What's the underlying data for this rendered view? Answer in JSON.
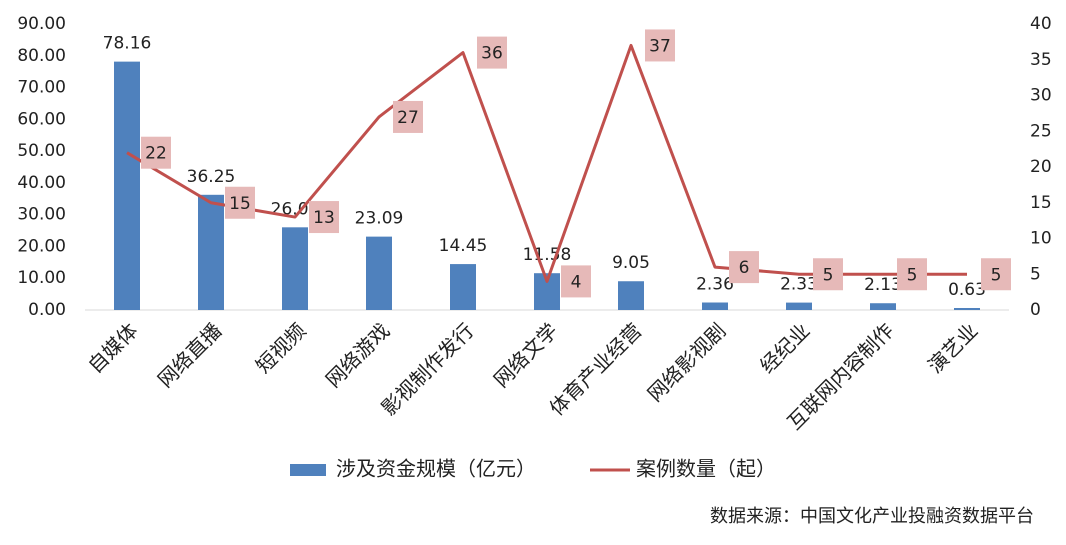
{
  "chart_data": {
    "type": "combo",
    "categories": [
      "自媒体",
      "网络直播",
      "短视频",
      "网络游戏",
      "影视制作发行",
      "网络文学",
      "体育产业经营",
      "网络影视剧",
      "经纪业",
      "互联网内容制作",
      "演艺业"
    ],
    "series": [
      {
        "name": "涉及资金规模（亿元）",
        "type": "bar",
        "color": "#4f81bd",
        "values": [
          78.16,
          36.25,
          26.02,
          23.09,
          14.45,
          11.58,
          9.05,
          2.36,
          2.33,
          2.13,
          0.63
        ]
      },
      {
        "name": "案例数量（起）",
        "type": "line",
        "axis": "y2",
        "color": "#c0504d",
        "values": [
          22,
          15,
          13,
          27,
          36,
          4,
          37,
          6,
          5,
          5,
          5
        ]
      }
    ],
    "ylim": [
      0,
      90
    ],
    "yticks": [
      {
        "value": 0,
        "label": "0.00"
      },
      {
        "value": 10,
        "label": "10.00"
      },
      {
        "value": 20,
        "label": "20.00"
      },
      {
        "value": 30,
        "label": "30.00"
      },
      {
        "value": 40,
        "label": "40.00"
      },
      {
        "value": 50,
        "label": "50.00"
      },
      {
        "value": 60,
        "label": "60.00"
      },
      {
        "value": 70,
        "label": "70.00"
      },
      {
        "value": 80,
        "label": "80.00"
      },
      {
        "value": 90,
        "label": "90.00"
      }
    ],
    "y2lim": [
      0,
      40
    ],
    "y2ticks": [
      0,
      5,
      10,
      15,
      20,
      25,
      30,
      35,
      40
    ],
    "legend": "bottom",
    "source": "数据来源：中国文化产业投融资数据平台"
  }
}
